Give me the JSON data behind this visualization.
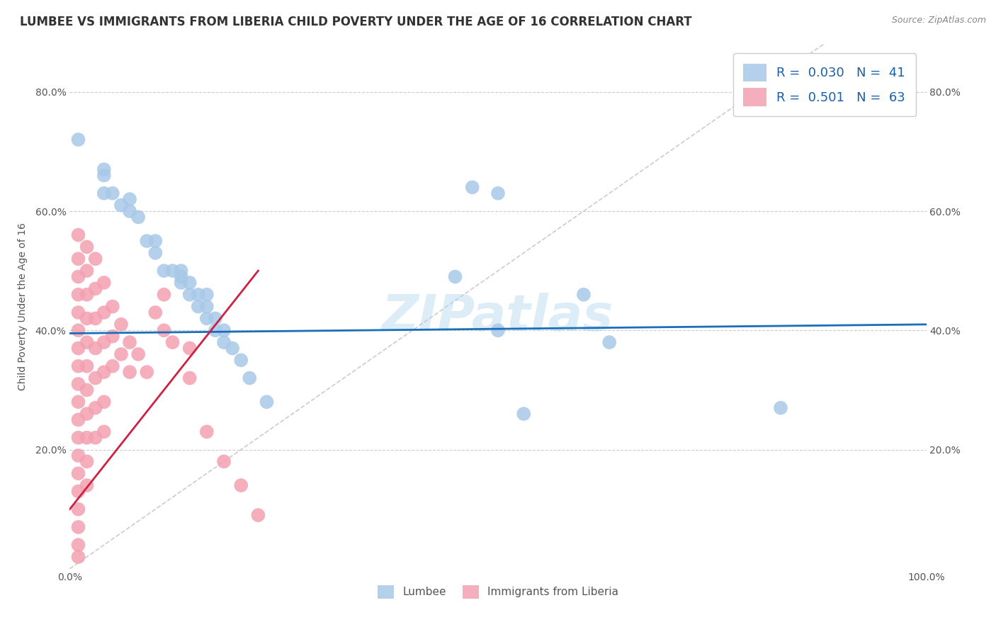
{
  "title": "LUMBEE VS IMMIGRANTS FROM LIBERIA CHILD POVERTY UNDER THE AGE OF 16 CORRELATION CHART",
  "source": "Source: ZipAtlas.com",
  "ylabel": "Child Poverty Under the Age of 16",
  "xlim": [
    0,
    1.0
  ],
  "ylim": [
    0,
    0.88
  ],
  "watermark": "ZIPatlas",
  "lumbee_color": "#a8c8e8",
  "liberia_color": "#f4a0b0",
  "lumbee_scatter": [
    [
      0.01,
      0.72
    ],
    [
      0.04,
      0.63
    ],
    [
      0.04,
      0.66
    ],
    [
      0.04,
      0.67
    ],
    [
      0.05,
      0.63
    ],
    [
      0.06,
      0.61
    ],
    [
      0.07,
      0.6
    ],
    [
      0.07,
      0.62
    ],
    [
      0.08,
      0.59
    ],
    [
      0.09,
      0.55
    ],
    [
      0.1,
      0.53
    ],
    [
      0.1,
      0.55
    ],
    [
      0.11,
      0.5
    ],
    [
      0.12,
      0.5
    ],
    [
      0.13,
      0.48
    ],
    [
      0.13,
      0.49
    ],
    [
      0.13,
      0.5
    ],
    [
      0.14,
      0.46
    ],
    [
      0.14,
      0.48
    ],
    [
      0.15,
      0.44
    ],
    [
      0.15,
      0.46
    ],
    [
      0.16,
      0.42
    ],
    [
      0.16,
      0.44
    ],
    [
      0.16,
      0.46
    ],
    [
      0.17,
      0.4
    ],
    [
      0.17,
      0.42
    ],
    [
      0.18,
      0.38
    ],
    [
      0.18,
      0.4
    ],
    [
      0.19,
      0.37
    ],
    [
      0.2,
      0.35
    ],
    [
      0.21,
      0.32
    ],
    [
      0.23,
      0.28
    ],
    [
      0.45,
      0.49
    ],
    [
      0.47,
      0.64
    ],
    [
      0.5,
      0.4
    ],
    [
      0.53,
      0.26
    ],
    [
      0.6,
      0.46
    ],
    [
      0.63,
      0.38
    ],
    [
      0.83,
      0.27
    ],
    [
      0.5,
      0.63
    ]
  ],
  "liberia_scatter": [
    [
      0.01,
      0.56
    ],
    [
      0.01,
      0.52
    ],
    [
      0.01,
      0.49
    ],
    [
      0.01,
      0.46
    ],
    [
      0.01,
      0.43
    ],
    [
      0.01,
      0.4
    ],
    [
      0.01,
      0.37
    ],
    [
      0.01,
      0.34
    ],
    [
      0.01,
      0.31
    ],
    [
      0.01,
      0.28
    ],
    [
      0.01,
      0.25
    ],
    [
      0.01,
      0.22
    ],
    [
      0.01,
      0.19
    ],
    [
      0.01,
      0.16
    ],
    [
      0.01,
      0.13
    ],
    [
      0.01,
      0.1
    ],
    [
      0.01,
      0.07
    ],
    [
      0.01,
      0.04
    ],
    [
      0.01,
      0.02
    ],
    [
      0.02,
      0.54
    ],
    [
      0.02,
      0.5
    ],
    [
      0.02,
      0.46
    ],
    [
      0.02,
      0.42
    ],
    [
      0.02,
      0.38
    ],
    [
      0.02,
      0.34
    ],
    [
      0.02,
      0.3
    ],
    [
      0.02,
      0.26
    ],
    [
      0.02,
      0.22
    ],
    [
      0.02,
      0.18
    ],
    [
      0.02,
      0.14
    ],
    [
      0.03,
      0.52
    ],
    [
      0.03,
      0.47
    ],
    [
      0.03,
      0.42
    ],
    [
      0.03,
      0.37
    ],
    [
      0.03,
      0.32
    ],
    [
      0.03,
      0.27
    ],
    [
      0.03,
      0.22
    ],
    [
      0.04,
      0.48
    ],
    [
      0.04,
      0.43
    ],
    [
      0.04,
      0.38
    ],
    [
      0.04,
      0.33
    ],
    [
      0.04,
      0.28
    ],
    [
      0.04,
      0.23
    ],
    [
      0.05,
      0.44
    ],
    [
      0.05,
      0.39
    ],
    [
      0.05,
      0.34
    ],
    [
      0.06,
      0.41
    ],
    [
      0.06,
      0.36
    ],
    [
      0.07,
      0.38
    ],
    [
      0.07,
      0.33
    ],
    [
      0.08,
      0.36
    ],
    [
      0.09,
      0.33
    ],
    [
      0.1,
      0.43
    ],
    [
      0.11,
      0.46
    ],
    [
      0.11,
      0.4
    ],
    [
      0.12,
      0.38
    ],
    [
      0.14,
      0.37
    ],
    [
      0.14,
      0.32
    ],
    [
      0.16,
      0.23
    ],
    [
      0.18,
      0.18
    ],
    [
      0.2,
      0.14
    ],
    [
      0.22,
      0.09
    ]
  ],
  "lumbee_line_color": "#1a6fba",
  "liberia_line_color": "#cc2244",
  "diagonal_color": "#cccccc",
  "grid_color": "#cccccc",
  "background_color": "#ffffff"
}
